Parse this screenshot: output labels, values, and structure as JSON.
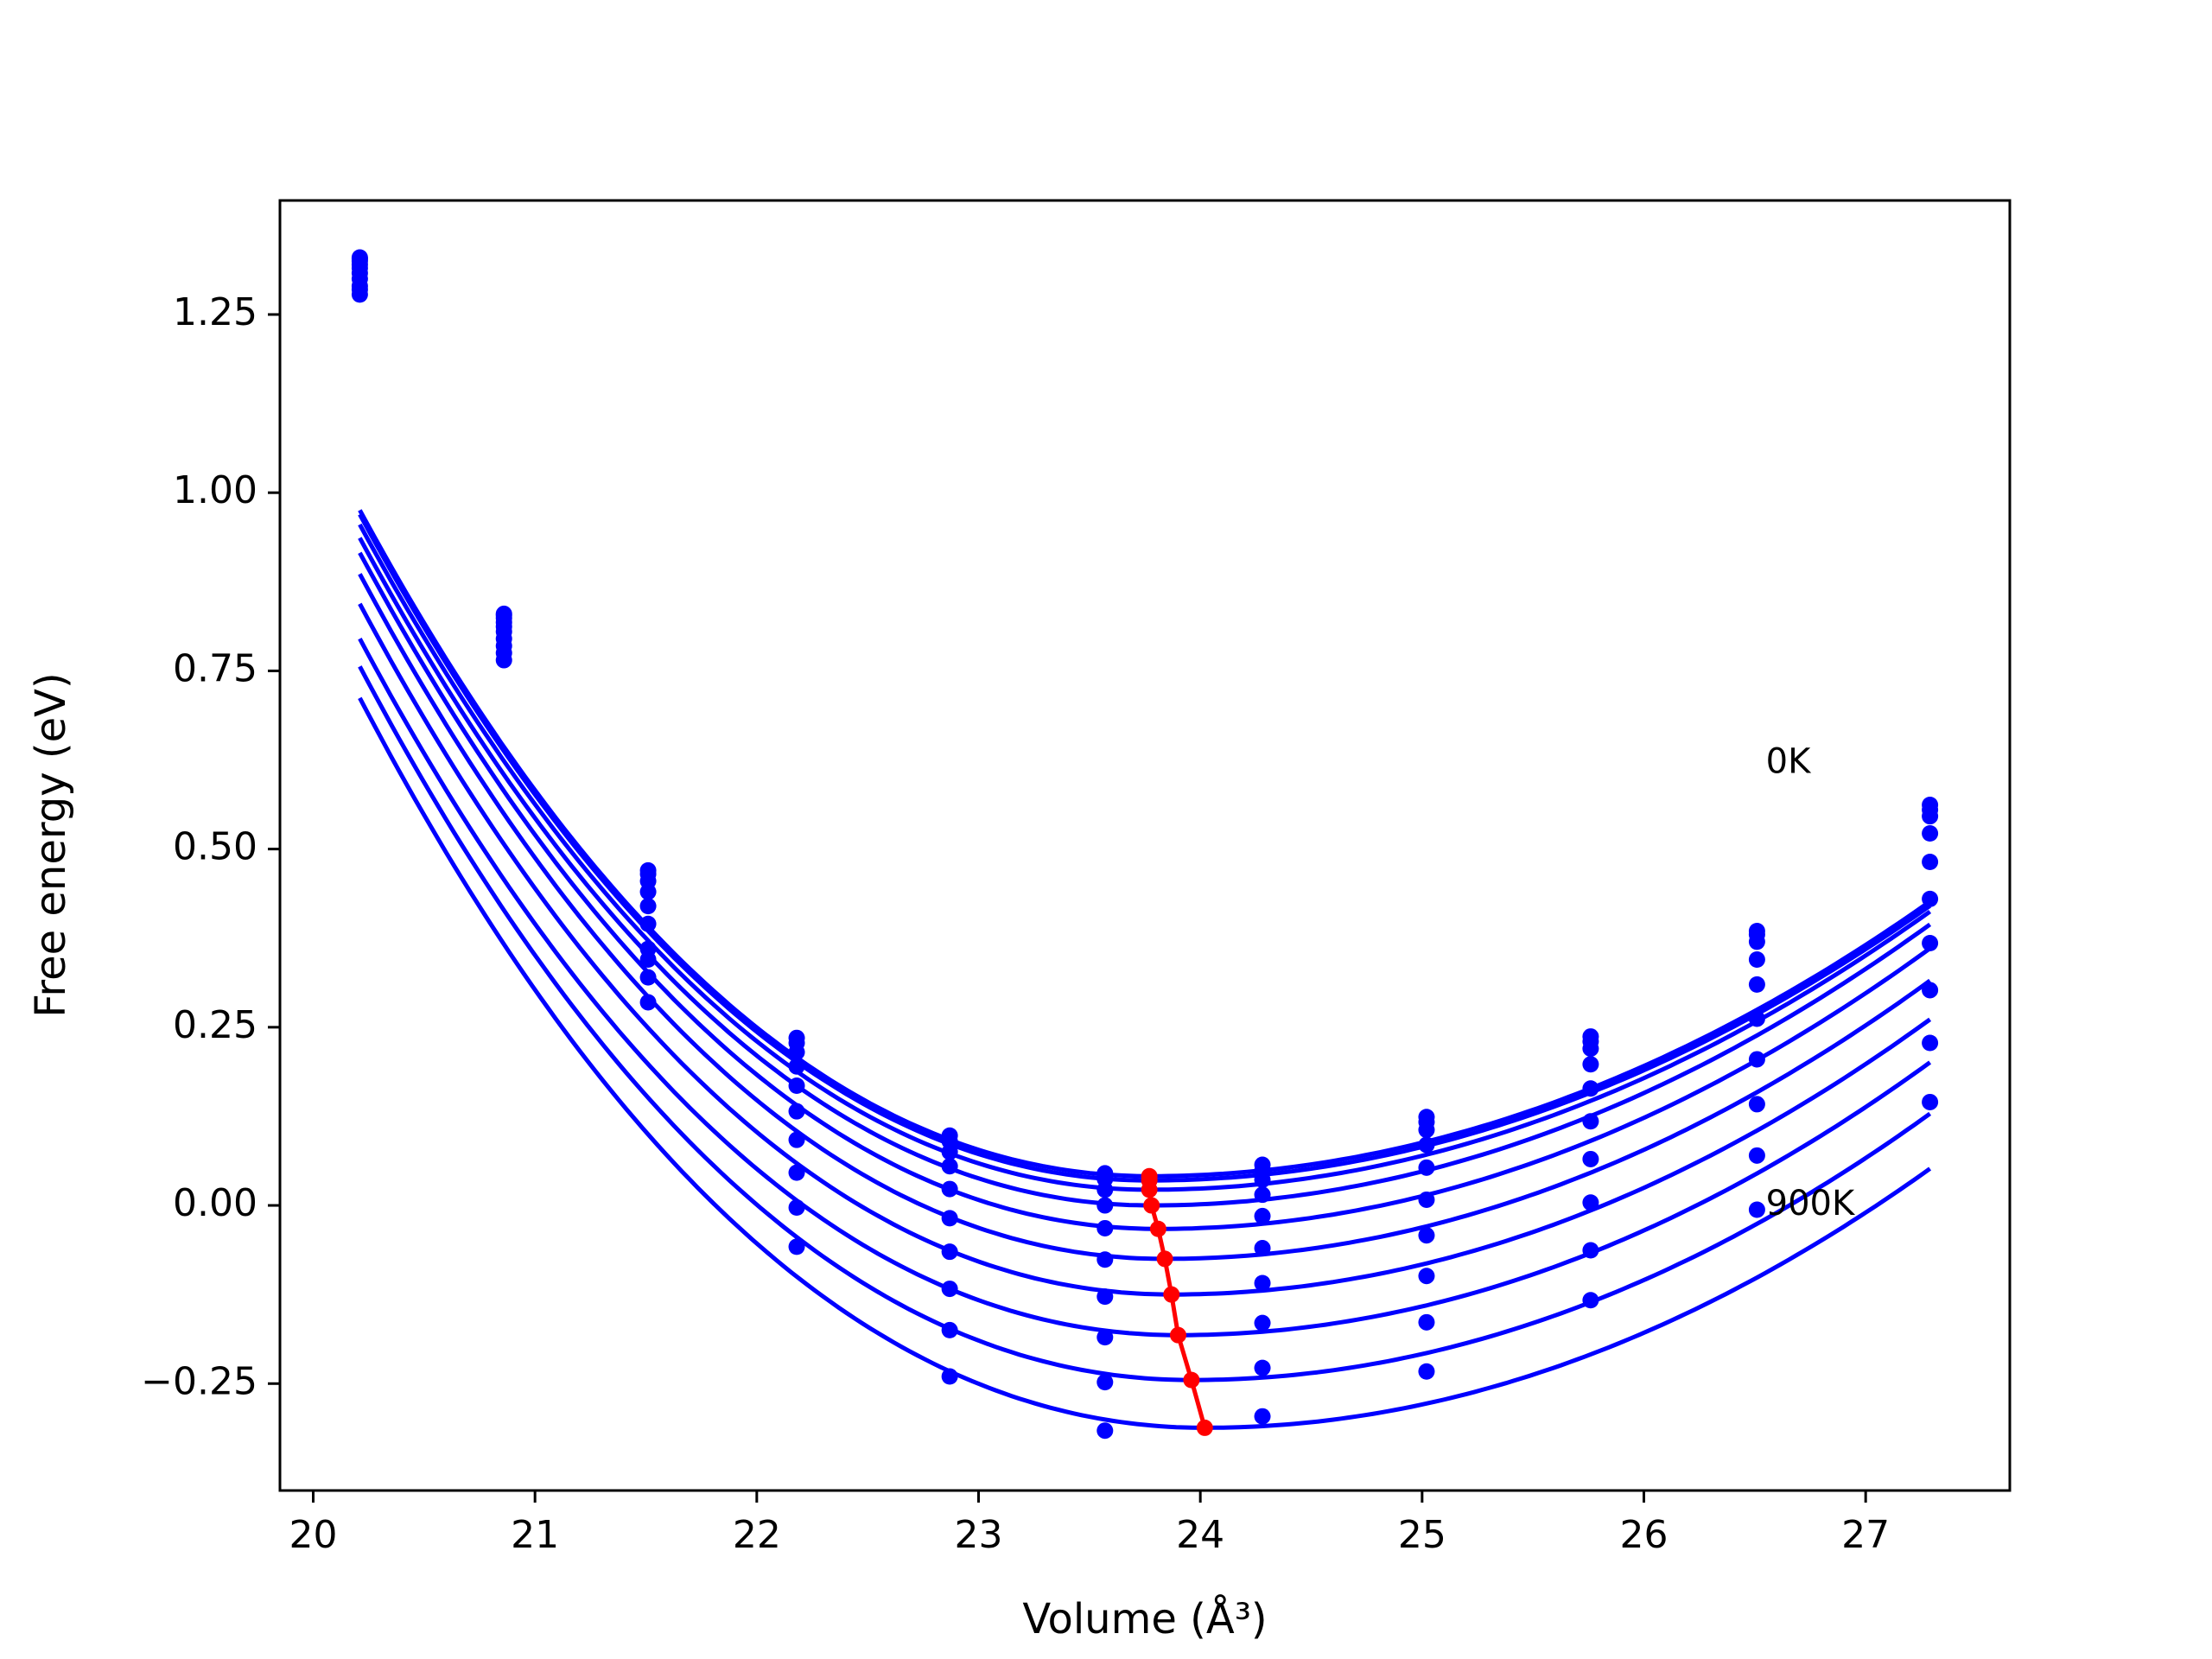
{
  "chart_data": {
    "type": "line",
    "title": "",
    "xlabel": "Volume (Å³)",
    "ylabel": "Free energy (eV)",
    "xlim": [
      19.85,
      27.65
    ],
    "ylim": [
      -0.4,
      1.41
    ],
    "x_ticks": [
      20,
      21,
      22,
      23,
      24,
      25,
      26,
      27
    ],
    "x_tick_labels": [
      "20",
      "21",
      "22",
      "23",
      "24",
      "25",
      "26",
      "27"
    ],
    "y_ticks": [
      -0.25,
      0.0,
      0.25,
      0.5,
      0.75,
      1.0,
      1.25
    ],
    "y_tick_labels": [
      "−0.25",
      "0.00",
      "0.25",
      "0.50",
      "0.75",
      "1.00",
      "1.25"
    ],
    "grid": false,
    "volumes": [
      20.21,
      20.86,
      21.51,
      22.18,
      22.87,
      23.57,
      24.28,
      25.02,
      25.76,
      26.51,
      27.29
    ],
    "series_color": "#0000ff",
    "minimum_color": "#ff0000",
    "series": [
      {
        "energies": [
          1.33,
          0.83,
          0.47,
          0.235,
          0.098,
          0.045,
          0.057,
          0.124,
          0.237,
          0.385,
          0.562
        ],
        "fit": {
          "v0": 23.77,
          "e0": 0.041,
          "left": 0.0595,
          "right": 0.0311
        }
      },
      {
        "energies": [
          1.328,
          0.828,
          0.465,
          0.228,
          0.09,
          0.037,
          0.049,
          0.117,
          0.23,
          0.38,
          0.555
        ],
        "fit": {
          "v0": 23.77,
          "e0": 0.035,
          "left": 0.0595,
          "right": 0.0311
        }
      },
      {
        "energies": [
          1.325,
          0.824,
          0.455,
          0.215,
          0.075,
          0.022,
          0.036,
          0.106,
          0.22,
          0.37,
          0.546
        ],
        "fit": {
          "v0": 23.77,
          "e0": 0.022,
          "left": 0.0594,
          "right": 0.0315
        }
      },
      {
        "energies": [
          1.32,
          0.818,
          0.44,
          0.195,
          0.055,
          0.0,
          0.015,
          0.085,
          0.198,
          0.345,
          0.522
        ],
        "fit": {
          "v0": 23.78,
          "e0": 0.0,
          "left": 0.0592,
          "right": 0.032
        }
      },
      {
        "energies": [
          1.315,
          0.812,
          0.42,
          0.168,
          0.023,
          -0.032,
          -0.015,
          0.053,
          0.164,
          0.31,
          0.482
        ],
        "fit": {
          "v0": 23.81,
          "e0": -0.033,
          "left": 0.0588,
          "right": 0.0325
        }
      },
      {
        "energies": [
          1.308,
          0.805,
          0.395,
          0.132,
          -0.018,
          -0.076,
          -0.06,
          0.008,
          0.118,
          0.262,
          0.43
        ],
        "fit": {
          "v0": 23.84,
          "e0": -0.075,
          "left": 0.0584,
          "right": 0.0328
        }
      },
      {
        "energies": [
          1.3,
          0.795,
          0.36,
          0.092,
          -0.065,
          -0.128,
          -0.109,
          -0.042,
          0.065,
          0.205,
          0.368
        ],
        "fit": {
          "v0": 23.87,
          "e0": -0.125,
          "left": 0.0577,
          "right": 0.033
        }
      },
      {
        "energies": [
          1.29,
          0.785,
          0.32,
          0.046,
          -0.117,
          -0.185,
          -0.165,
          -0.099,
          0.004,
          0.142,
          0.302
        ],
        "fit": {
          "v0": 23.9,
          "e0": -0.182,
          "left": 0.057,
          "right": 0.0333
        }
      },
      {
        "energies": [
          1.285,
          0.775,
          0.285,
          -0.003,
          -0.175,
          -0.248,
          -0.228,
          -0.164,
          -0.063,
          0.07,
          0.228
        ],
        "fit": {
          "v0": 23.96,
          "e0": -0.245,
          "left": 0.0562,
          "right": 0.0337
        }
      },
      {
        "energies": [
          1.278,
          0.765,
          0.345,
          -0.058,
          -0.24,
          -0.316,
          -0.296,
          -0.233,
          -0.133,
          -0.006,
          0.145
        ],
        "fit": {
          "v0": 24.02,
          "e0": -0.312,
          "left": 0.0553,
          "right": 0.034
        }
      }
    ],
    "minimum_path": {
      "volume": [
        23.77,
        23.77,
        23.77,
        23.78,
        23.81,
        23.84,
        23.87,
        23.9,
        23.96,
        24.02
      ],
      "energy": [
        0.041,
        0.035,
        0.022,
        0.0,
        -0.033,
        -0.075,
        -0.125,
        -0.182,
        -0.245,
        -0.312
      ]
    },
    "annotations": [
      {
        "text": "0K",
        "x": 26.55,
        "y": 0.62
      },
      {
        "text": "900K",
        "x": 26.55,
        "y": 0.0
      }
    ]
  }
}
